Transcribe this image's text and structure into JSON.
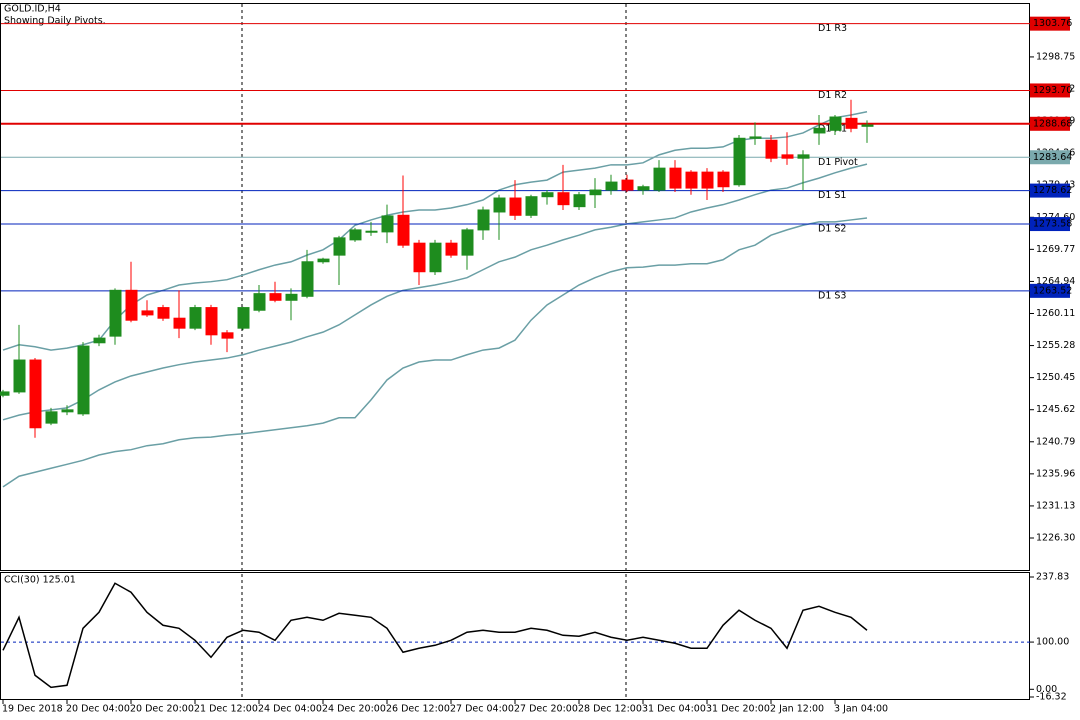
{
  "chart_data": [
    {
      "type": "candlestick",
      "title": "GOLD.ID,H4",
      "subtitle": "Showing Daily Pivots.",
      "categories": [
        "19 Dec 2018",
        null,
        null,
        null,
        "20 Dec 04:00",
        null,
        null,
        null,
        "20 Dec 20:00",
        null,
        null,
        null,
        "21 Dec 12:00",
        null,
        null,
        null,
        "24 Dec 04:00",
        null,
        null,
        null,
        "24 Dec 20:00",
        null,
        null,
        null,
        "26 Dec 12:00",
        null,
        null,
        null,
        "27 Dec 04:00",
        null,
        null,
        null,
        "27 Dec 20:00",
        null,
        null,
        null,
        "28 Dec 12:00",
        null,
        null,
        null,
        "31 Dec 04:00",
        null,
        null,
        null,
        "31 Dec 20:00",
        null,
        null,
        null,
        "2 Jan 12:00",
        null,
        null,
        null,
        "3 Jan 04:00",
        null,
        null
      ],
      "open": [
        1247.8,
        1248.3,
        1253.1,
        1243.6,
        1245.3,
        1245.0,
        1255.7,
        1256.7,
        1263.6,
        1260.5,
        1261.0,
        1259.4,
        1257.9,
        1261.0,
        1257.2,
        1257.9,
        1260.6,
        1263.1,
        1262.1,
        1262.7,
        1267.9,
        1268.9,
        1271.2,
        1272.4,
        1272.4,
        1274.9,
        1270.7,
        1266.4,
        1270.7,
        1268.9,
        1272.7,
        1275.4,
        1277.5,
        1274.9,
        1277.7,
        1278.3,
        1276.2,
        1278.0,
        1278.7,
        1280.2,
        1278.7,
        1278.7,
        1282.0,
        1281.4,
        1281.4,
        1281.4,
        1279.5,
        1286.5,
        1286.2,
        1284.0,
        1283.5,
        1287.3,
        1287.7,
        1289.5,
        1288.3
      ],
      "high": [
        1248.6,
        1258.4,
        1253.4,
        1245.9,
        1246.3,
        1255.8,
        1256.9,
        1263.9,
        1267.9,
        1262.1,
        1261.4,
        1263.6,
        1261.4,
        1261.4,
        1257.6,
        1261.1,
        1264.4,
        1264.9,
        1263.9,
        1269.7,
        1268.5,
        1271.8,
        1273.0,
        1273.9,
        1276.5,
        1280.9,
        1271.2,
        1271.2,
        1271.2,
        1273.0,
        1276.2,
        1278.0,
        1280.2,
        1278.0,
        1278.7,
        1282.5,
        1278.4,
        1280.5,
        1281.0,
        1281.0,
        1279.5,
        1283.2,
        1283.2,
        1281.7,
        1282.0,
        1281.7,
        1287.0,
        1288.9,
        1287.0,
        1287.4,
        1284.7,
        1290.0,
        1290.0,
        1292.3,
        1289.2
      ],
      "low": [
        1247.5,
        1248.0,
        1241.4,
        1243.3,
        1244.8,
        1244.7,
        1255.2,
        1255.4,
        1258.8,
        1259.6,
        1259.0,
        1256.4,
        1257.6,
        1255.4,
        1254.3,
        1257.6,
        1260.3,
        1261.8,
        1259.1,
        1262.4,
        1267.6,
        1264.4,
        1270.9,
        1271.8,
        1270.7,
        1270.0,
        1264.4,
        1265.9,
        1268.5,
        1266.7,
        1271.2,
        1271.2,
        1274.2,
        1274.5,
        1276.5,
        1275.7,
        1275.7,
        1276.0,
        1278.0,
        1278.4,
        1278.0,
        1278.4,
        1278.4,
        1278.0,
        1277.2,
        1278.4,
        1279.2,
        1285.5,
        1282.9,
        1282.5,
        1278.7,
        1285.5,
        1287.0,
        1287.4,
        1285.8
      ],
      "close": [
        1248.3,
        1253.1,
        1242.9,
        1245.3,
        1245.6,
        1255.2,
        1256.4,
        1263.6,
        1259.1,
        1259.9,
        1259.4,
        1257.9,
        1261.0,
        1256.9,
        1256.4,
        1261.0,
        1263.1,
        1262.1,
        1263.0,
        1267.9,
        1268.3,
        1271.5,
        1272.7,
        1272.5,
        1274.8,
        1270.4,
        1266.4,
        1270.7,
        1268.9,
        1272.7,
        1275.7,
        1277.5,
        1274.9,
        1277.7,
        1278.3,
        1276.5,
        1278.0,
        1278.7,
        1279.9,
        1278.7,
        1279.2,
        1282.0,
        1279.0,
        1279.0,
        1279.0,
        1279.2,
        1286.5,
        1286.7,
        1283.5,
        1283.5,
        1284.0,
        1288.0,
        1289.7,
        1288.0,
        1288.5
      ],
      "up_color": "#1e8c1e",
      "down_color": "#ff0000",
      "series": [
        {
          "color": "#6a9fa5",
          "values": [
            1254.6,
            1255.4,
            1255.1,
            1254.6,
            1254.9,
            1255.4,
            1256.1,
            1259.1,
            1261.4,
            1262.9,
            1263.6,
            1264.4,
            1264.7,
            1264.9,
            1265.2,
            1265.9,
            1266.7,
            1267.4,
            1267.9,
            1268.9,
            1269.7,
            1271.2,
            1273.4,
            1274.2,
            1274.9,
            1275.4,
            1275.7,
            1275.7,
            1276.0,
            1276.5,
            1277.2,
            1278.7,
            1279.5,
            1279.9,
            1280.2,
            1281.4,
            1281.7,
            1282.0,
            1282.5,
            1282.5,
            1282.8,
            1284.0,
            1284.7,
            1285.0,
            1285.0,
            1285.2,
            1286.2,
            1286.5,
            1286.5,
            1286.7,
            1287.3,
            1288.5,
            1289.6,
            1290.0,
            1290.5
          ]
        },
        {
          "color": "#6a9fa5",
          "values": [
            1244.1,
            1244.8,
            1245.3,
            1245.6,
            1245.9,
            1247.1,
            1248.6,
            1249.8,
            1250.7,
            1251.3,
            1251.9,
            1252.4,
            1252.8,
            1253.1,
            1253.4,
            1253.9,
            1254.6,
            1255.2,
            1255.8,
            1256.6,
            1257.3,
            1258.4,
            1259.9,
            1261.4,
            1262.7,
            1263.6,
            1264.0,
            1264.4,
            1264.9,
            1265.5,
            1266.7,
            1267.9,
            1268.6,
            1269.7,
            1270.4,
            1271.2,
            1271.9,
            1272.7,
            1273.1,
            1273.6,
            1273.9,
            1274.2,
            1274.5,
            1275.4,
            1276.0,
            1276.5,
            1277.2,
            1278.0,
            1278.7,
            1279.0,
            1279.8,
            1280.5,
            1281.3,
            1282.0,
            1282.6
          ]
        },
        {
          "color": "#6a9fa5",
          "values": [
            1234.0,
            1235.6,
            1236.2,
            1236.8,
            1237.4,
            1238.0,
            1238.8,
            1239.3,
            1239.6,
            1240.2,
            1240.5,
            1241.1,
            1241.4,
            1241.5,
            1241.8,
            1242.0,
            1242.3,
            1242.6,
            1242.9,
            1243.2,
            1243.6,
            1244.4,
            1244.4,
            1247.1,
            1250.1,
            1251.9,
            1252.8,
            1253.1,
            1253.1,
            1253.9,
            1254.6,
            1254.9,
            1256.1,
            1259.1,
            1261.4,
            1262.9,
            1264.4,
            1265.5,
            1266.4,
            1267.0,
            1267.1,
            1267.4,
            1267.4,
            1267.6,
            1267.6,
            1268.2,
            1269.7,
            1270.4,
            1271.9,
            1272.7,
            1273.4,
            1273.9,
            1273.9,
            1274.2,
            1274.5
          ]
        }
      ],
      "pivots": [
        {
          "name": "D1 R3",
          "value": 1303.76,
          "label": "1303.76",
          "color": "#e00000"
        },
        {
          "name": "D1 R2",
          "value": 1293.7,
          "label": "1293.70",
          "color": "#e00000"
        },
        {
          "name": "D1 R1",
          "value": 1288.68,
          "label": "1288.68",
          "color": "#e00000"
        },
        {
          "name": "D1 Pivot",
          "value": 1283.64,
          "label": "1283.64",
          "color": "#7aa9ad"
        },
        {
          "name": "D1 S1",
          "value": 1278.62,
          "label": "1278.62",
          "color": "#0022bb"
        },
        {
          "name": "D1 S2",
          "value": 1273.58,
          "label": "1273.58",
          "color": "#0022bb"
        },
        {
          "name": "D1 S3",
          "value": 1263.52,
          "label": "1263.52",
          "color": "#0022bb"
        }
      ],
      "ylim": [
        1221.48,
        1306.57
      ],
      "yticks": [
        {
          "value": 1226.3,
          "label": "1226.30"
        },
        {
          "value": 1231.13,
          "label": "1231.13"
        },
        {
          "value": 1235.96,
          "label": "1235.96"
        },
        {
          "value": 1240.79,
          "label": "1240.79"
        },
        {
          "value": 1245.62,
          "label": "1245.62"
        },
        {
          "value": 1250.45,
          "label": "1250.45"
        },
        {
          "value": 1255.28,
          "label": "1255.28"
        },
        {
          "value": 1260.11,
          "label": "1260.11"
        },
        {
          "value": 1264.94,
          "label": "1264.94"
        },
        {
          "value": 1269.77,
          "label": "1269.77"
        },
        {
          "value": 1274.6,
          "label": "1274.60"
        },
        {
          "value": 1279.43,
          "label": "1279.43"
        },
        {
          "value": 1284.26,
          "label": "1284.26"
        },
        {
          "value": 1289.09,
          "label": "1289.09"
        },
        {
          "value": 1293.92,
          "label": "1293.92"
        },
        {
          "value": 1298.75,
          "label": "1298.75"
        }
      ]
    },
    {
      "type": "line",
      "title": "CCI(30) 125.01",
      "color": "#000000",
      "values": [
        82.6,
        152.5,
        29.7,
        4.2,
        8.5,
        129.2,
        163.1,
        224.6,
        205.5,
        163.1,
        135.6,
        129.2,
        103.8,
        67.8,
        110.2,
        125.0,
        120.8,
        103.8,
        146.2,
        152.5,
        146.2,
        161.0,
        156.8,
        152.5,
        129.2,
        78.4,
        86.9,
        93.2,
        103.8,
        120.8,
        125.0,
        120.8,
        120.8,
        129.2,
        125.0,
        114.4,
        112.3,
        120.8,
        110.2,
        103.8,
        110.2,
        103.8,
        97.5,
        86.9,
        86.9,
        135.6,
        167.4,
        146.2,
        129.2,
        86.9,
        167.4,
        175.8,
        163.1,
        152.5,
        125.01
      ],
      "levels": [
        100
      ],
      "level_color": "#0022bb",
      "ylim": [
        -16.32,
        237.83
      ],
      "yticks": [
        {
          "value": 237.83,
          "label": "237.83"
        },
        {
          "value": 100,
          "label": "100.00"
        },
        {
          "value": 0,
          "label": "0.00"
        },
        {
          "value": -16.32,
          "label": "-16.32"
        }
      ]
    }
  ]
}
